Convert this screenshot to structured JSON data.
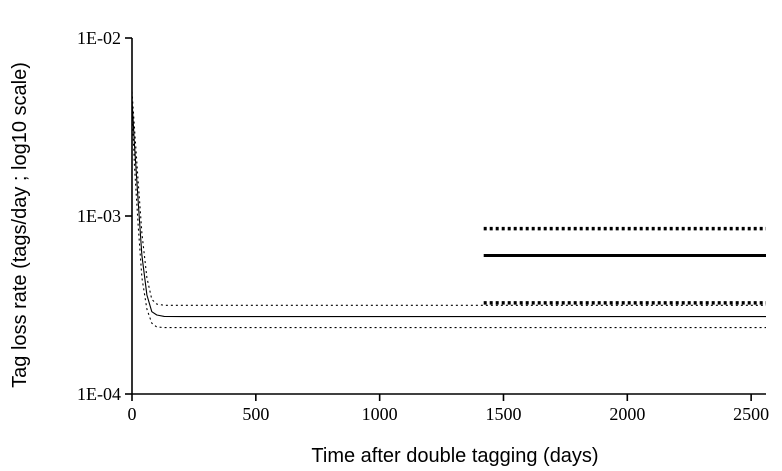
{
  "chart_data": {
    "type": "line",
    "xlabel": "Time after double tagging (days)",
    "ylabel": "Tag loss rate (tags/day ; log10 scale)",
    "xlim": [
      0,
      2560
    ],
    "ylim": [
      0.0001,
      0.01
    ],
    "yscale": "log",
    "grid": false,
    "x_ticks": [
      0,
      500,
      1000,
      1500,
      2000,
      2500
    ],
    "x_tick_labels": [
      "0",
      "500",
      "1000",
      "1500",
      "2000",
      "2500"
    ],
    "y_ticks": [
      0.0001,
      0.001,
      0.01
    ],
    "y_tick_labels": [
      "1E-04",
      "1E-03",
      "1E-02"
    ],
    "series": [
      {
        "style": "thin-solid",
        "x": [
          0,
          10,
          25,
          40,
          60,
          80,
          100,
          130,
          200,
          500,
          1000,
          1500,
          2000,
          2560
        ],
        "y": [
          0.0045,
          0.0025,
          0.0012,
          0.0006,
          0.00036,
          0.00029,
          0.000278,
          0.000273,
          0.000272,
          0.000272,
          0.000272,
          0.000272,
          0.000272,
          0.000272
        ]
      },
      {
        "style": "thin-dotted",
        "x": [
          0,
          10,
          25,
          40,
          60,
          80,
          100,
          130,
          200,
          500,
          1000,
          1500,
          2000,
          2560
        ],
        "y": [
          0.005,
          0.0031,
          0.00155,
          0.0008,
          0.00045,
          0.00034,
          0.00032,
          0.000315,
          0.000315,
          0.000315,
          0.000315,
          0.000315,
          0.000315,
          0.000315
        ]
      },
      {
        "style": "thin-dotted",
        "x": [
          0,
          10,
          25,
          40,
          60,
          80,
          100,
          130,
          200,
          500,
          1000,
          1500,
          2000,
          2560
        ],
        "y": [
          0.004,
          0.0019,
          0.00088,
          0.00045,
          0.0003,
          0.00025,
          0.000238,
          0.000236,
          0.000236,
          0.000236,
          0.000236,
          0.000236,
          0.000236,
          0.000236
        ]
      },
      {
        "style": "thick-solid",
        "x": [
          1420,
          2560
        ],
        "y": [
          0.0006,
          0.0006
        ]
      },
      {
        "style": "thick-dotted",
        "x": [
          1420,
          2560
        ],
        "y": [
          0.00085,
          0.00085
        ]
      },
      {
        "style": "thick-dotted",
        "x": [
          1420,
          2560
        ],
        "y": [
          0.000325,
          0.000325
        ]
      }
    ]
  }
}
